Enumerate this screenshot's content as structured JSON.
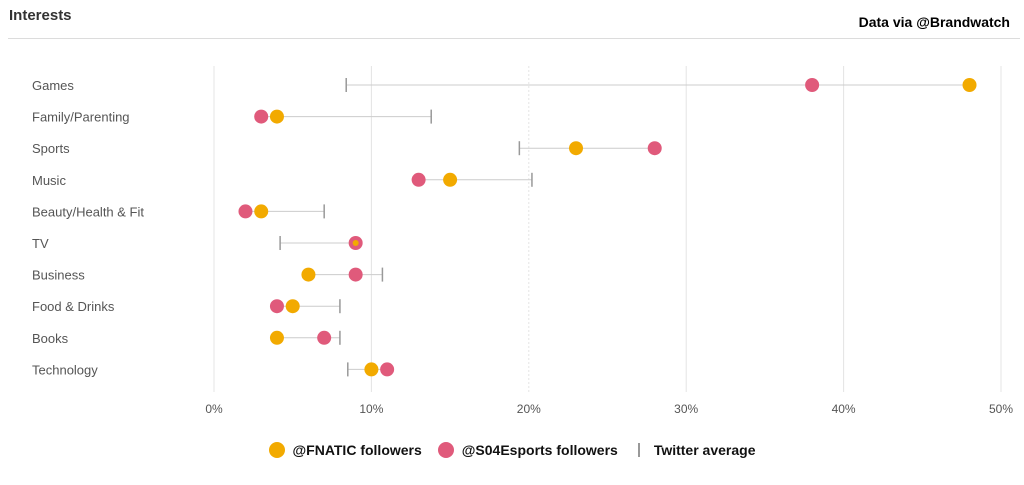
{
  "header": {
    "title": "Interests",
    "credit": "Data via @Brandwatch"
  },
  "legend": {
    "fnatic": "@FNATIC followers",
    "s04": "@S04Esports followers",
    "twitter": "Twitter average"
  },
  "colors": {
    "fnatic": "#F2AA00",
    "s04": "#E05A7B",
    "avg_marker": "#999999",
    "connector": "#cccccc",
    "grid": "#e4e4e4",
    "label": "#555555"
  },
  "chart_data": {
    "type": "dot-plot",
    "title": "Interests",
    "x_axis": {
      "min": 0,
      "max": 50,
      "ticks": [
        0,
        10,
        20,
        30,
        40,
        50
      ],
      "tick_suffix": "%"
    },
    "categories": [
      "Games",
      "Family/Parenting",
      "Sports",
      "Music",
      "Beauty/Health & Fit",
      "TV",
      "Business",
      "Food & Drinks",
      "Books",
      "Technology"
    ],
    "series": [
      {
        "key": "fnatic",
        "name": "@FNATIC followers",
        "values": [
          48,
          4,
          23,
          15,
          3,
          9,
          6,
          5,
          4,
          10
        ]
      },
      {
        "key": "s04",
        "name": "@S04Esports followers",
        "values": [
          38,
          3,
          28,
          13,
          2,
          9,
          9,
          4,
          7,
          11
        ]
      },
      {
        "key": "twitter",
        "name": "Twitter average",
        "values": [
          8.4,
          13.8,
          19.4,
          20.2,
          7.0,
          4.2,
          10.7,
          8.0,
          8.0,
          8.5
        ]
      }
    ]
  }
}
